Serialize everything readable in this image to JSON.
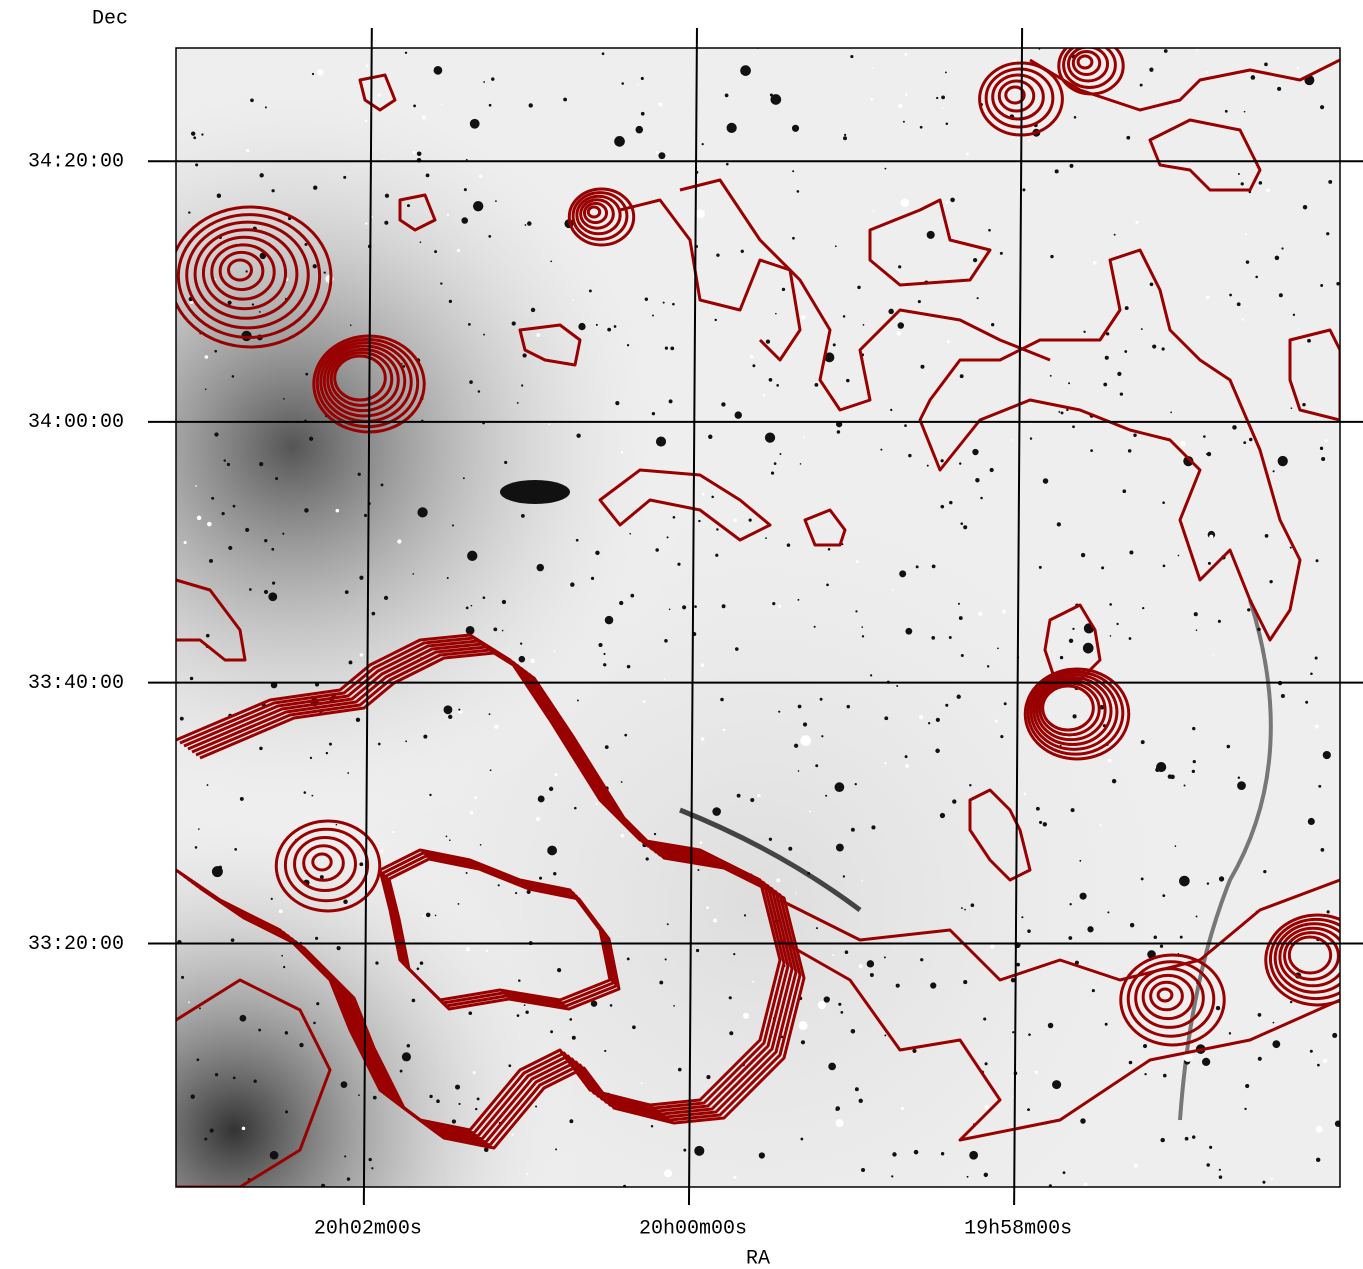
{
  "chart_data": {
    "type": "image",
    "xlabel": "RA",
    "ylabel": "Dec",
    "xlim": [
      300.795,
      299.005
    ],
    "ylim": [
      33.022,
      34.478
    ],
    "xticks": [
      {
        "value": 300.5,
        "label": "20h02m00s"
      },
      {
        "value": 300.0,
        "label": "20h00m00s"
      },
      {
        "value": 299.5,
        "label": "19h58m00s"
      }
    ],
    "yticks": [
      {
        "value": 34.3333,
        "label": "34:20:00"
      },
      {
        "value": 34.0,
        "label": "34:00:00"
      },
      {
        "value": 33.6667,
        "label": "33:40:00"
      },
      {
        "value": 33.3333,
        "label": "33:20:00"
      }
    ],
    "grid": true,
    "contour_color": "#990000"
  }
}
